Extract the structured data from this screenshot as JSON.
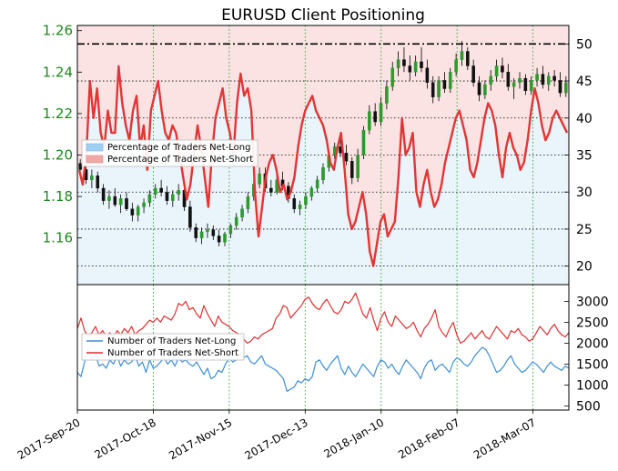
{
  "chart_data": {
    "title": "EURUSD Client Positioning",
    "top": {
      "price_axis": {
        "ticks": [
          "1.16",
          "1.18",
          "1.20",
          "1.22",
          "1.24",
          "1.26"
        ],
        "ylim": [
          1.1375,
          1.2625
        ]
      },
      "percent_axis": {
        "ticks": [
          "20",
          "25",
          "30",
          "35",
          "40",
          "45",
          "50"
        ],
        "ylim": [
          17.5,
          52.5
        ]
      },
      "reference_line": 50,
      "legend": [
        {
          "label": "Percentage of Traders Net-Long",
          "color": "#9fcff2"
        },
        {
          "label": "Percentage of Traders Net-Short",
          "color": "#f2a7a7"
        }
      ],
      "net_short_pct": [
        33,
        31,
        35,
        45,
        40,
        44,
        38,
        36,
        41,
        38,
        38,
        47,
        42,
        39,
        37,
        41,
        43,
        36,
        39,
        33,
        41,
        43,
        45,
        41,
        38,
        37,
        39,
        38,
        35,
        32,
        29,
        31,
        35,
        39,
        36,
        32,
        28,
        35,
        40,
        42,
        44,
        40,
        38,
        35,
        42,
        46,
        43,
        44,
        41,
        30,
        24,
        28,
        32,
        34,
        35,
        33,
        30,
        31,
        29,
        30,
        32,
        36,
        39,
        41,
        42,
        43,
        41,
        40,
        39,
        37,
        34,
        33,
        36,
        38,
        33,
        27,
        25,
        26,
        28,
        30,
        27,
        22,
        20,
        23,
        26,
        27,
        24,
        25,
        26,
        32,
        40,
        35,
        36,
        38,
        30,
        28,
        31,
        33,
        30,
        28,
        29,
        31,
        34,
        36,
        38,
        40,
        41,
        39,
        37,
        33,
        32,
        34,
        37,
        40,
        42,
        41,
        39,
        35,
        32,
        36,
        38,
        36,
        35,
        33,
        34,
        37,
        41,
        44,
        42,
        39,
        37,
        38,
        40,
        41,
        40,
        39,
        38
      ],
      "ohlc": [
        {
          "o": 1.196,
          "h": 1.198,
          "l": 1.191,
          "c": 1.193
        },
        {
          "o": 1.193,
          "h": 1.197,
          "l": 1.186,
          "c": 1.188
        },
        {
          "o": 1.188,
          "h": 1.193,
          "l": 1.184,
          "c": 1.19
        },
        {
          "o": 1.19,
          "h": 1.192,
          "l": 1.182,
          "c": 1.184
        },
        {
          "o": 1.184,
          "h": 1.186,
          "l": 1.176,
          "c": 1.178
        },
        {
          "o": 1.178,
          "h": 1.183,
          "l": 1.174,
          "c": 1.18
        },
        {
          "o": 1.18,
          "h": 1.184,
          "l": 1.175,
          "c": 1.176
        },
        {
          "o": 1.176,
          "h": 1.181,
          "l": 1.172,
          "c": 1.179
        },
        {
          "o": 1.179,
          "h": 1.182,
          "l": 1.173,
          "c": 1.174
        },
        {
          "o": 1.174,
          "h": 1.177,
          "l": 1.168,
          "c": 1.171
        },
        {
          "o": 1.171,
          "h": 1.176,
          "l": 1.168,
          "c": 1.175
        },
        {
          "o": 1.175,
          "h": 1.179,
          "l": 1.172,
          "c": 1.177
        },
        {
          "o": 1.177,
          "h": 1.183,
          "l": 1.175,
          "c": 1.181
        },
        {
          "o": 1.181,
          "h": 1.186,
          "l": 1.179,
          "c": 1.184
        },
        {
          "o": 1.184,
          "h": 1.188,
          "l": 1.18,
          "c": 1.182
        },
        {
          "o": 1.182,
          "h": 1.185,
          "l": 1.176,
          "c": 1.178
        },
        {
          "o": 1.178,
          "h": 1.183,
          "l": 1.175,
          "c": 1.181
        },
        {
          "o": 1.181,
          "h": 1.186,
          "l": 1.178,
          "c": 1.183
        },
        {
          "o": 1.183,
          "h": 1.184,
          "l": 1.173,
          "c": 1.175
        },
        {
          "o": 1.175,
          "h": 1.178,
          "l": 1.163,
          "c": 1.165
        },
        {
          "o": 1.165,
          "h": 1.167,
          "l": 1.158,
          "c": 1.16
        },
        {
          "o": 1.16,
          "h": 1.165,
          "l": 1.157,
          "c": 1.163
        },
        {
          "o": 1.163,
          "h": 1.167,
          "l": 1.16,
          "c": 1.164
        },
        {
          "o": 1.164,
          "h": 1.166,
          "l": 1.159,
          "c": 1.161
        },
        {
          "o": 1.161,
          "h": 1.164,
          "l": 1.156,
          "c": 1.158
        },
        {
          "o": 1.158,
          "h": 1.163,
          "l": 1.156,
          "c": 1.162
        },
        {
          "o": 1.162,
          "h": 1.167,
          "l": 1.16,
          "c": 1.166
        },
        {
          "o": 1.166,
          "h": 1.172,
          "l": 1.164,
          "c": 1.17
        },
        {
          "o": 1.17,
          "h": 1.176,
          "l": 1.168,
          "c": 1.174
        },
        {
          "o": 1.174,
          "h": 1.182,
          "l": 1.172,
          "c": 1.18
        },
        {
          "o": 1.18,
          "h": 1.188,
          "l": 1.178,
          "c": 1.186
        },
        {
          "o": 1.186,
          "h": 1.194,
          "l": 1.184,
          "c": 1.191
        },
        {
          "o": 1.191,
          "h": 1.194,
          "l": 1.182,
          "c": 1.184
        },
        {
          "o": 1.184,
          "h": 1.188,
          "l": 1.18,
          "c": 1.182
        },
        {
          "o": 1.182,
          "h": 1.19,
          "l": 1.181,
          "c": 1.188
        },
        {
          "o": 1.188,
          "h": 1.192,
          "l": 1.183,
          "c": 1.185
        },
        {
          "o": 1.185,
          "h": 1.187,
          "l": 1.177,
          "c": 1.179
        },
        {
          "o": 1.179,
          "h": 1.181,
          "l": 1.172,
          "c": 1.174
        },
        {
          "o": 1.174,
          "h": 1.178,
          "l": 1.171,
          "c": 1.176
        },
        {
          "o": 1.176,
          "h": 1.182,
          "l": 1.174,
          "c": 1.18
        },
        {
          "o": 1.18,
          "h": 1.185,
          "l": 1.178,
          "c": 1.184
        },
        {
          "o": 1.184,
          "h": 1.19,
          "l": 1.182,
          "c": 1.188
        },
        {
          "o": 1.188,
          "h": 1.196,
          "l": 1.186,
          "c": 1.194
        },
        {
          "o": 1.194,
          "h": 1.202,
          "l": 1.192,
          "c": 1.2
        },
        {
          "o": 1.2,
          "h": 1.206,
          "l": 1.198,
          "c": 1.204
        },
        {
          "o": 1.204,
          "h": 1.208,
          "l": 1.199,
          "c": 1.201
        },
        {
          "o": 1.201,
          "h": 1.205,
          "l": 1.195,
          "c": 1.197
        },
        {
          "o": 1.197,
          "h": 1.199,
          "l": 1.186,
          "c": 1.189
        },
        {
          "o": 1.189,
          "h": 1.203,
          "l": 1.187,
          "c": 1.2
        },
        {
          "o": 1.2,
          "h": 1.214,
          "l": 1.198,
          "c": 1.212
        },
        {
          "o": 1.212,
          "h": 1.224,
          "l": 1.21,
          "c": 1.221
        },
        {
          "o": 1.221,
          "h": 1.225,
          "l": 1.214,
          "c": 1.216
        },
        {
          "o": 1.216,
          "h": 1.228,
          "l": 1.214,
          "c": 1.225
        },
        {
          "o": 1.225,
          "h": 1.236,
          "l": 1.222,
          "c": 1.233
        },
        {
          "o": 1.233,
          "h": 1.245,
          "l": 1.231,
          "c": 1.242
        },
        {
          "o": 1.242,
          "h": 1.25,
          "l": 1.238,
          "c": 1.246
        },
        {
          "o": 1.246,
          "h": 1.252,
          "l": 1.24,
          "c": 1.243
        },
        {
          "o": 1.243,
          "h": 1.248,
          "l": 1.236,
          "c": 1.24
        },
        {
          "o": 1.24,
          "h": 1.248,
          "l": 1.238,
          "c": 1.245
        },
        {
          "o": 1.245,
          "h": 1.252,
          "l": 1.24,
          "c": 1.242
        },
        {
          "o": 1.242,
          "h": 1.246,
          "l": 1.232,
          "c": 1.235
        },
        {
          "o": 1.235,
          "h": 1.238,
          "l": 1.225,
          "c": 1.228
        },
        {
          "o": 1.228,
          "h": 1.238,
          "l": 1.226,
          "c": 1.236
        },
        {
          "o": 1.236,
          "h": 1.24,
          "l": 1.23,
          "c": 1.232
        },
        {
          "o": 1.232,
          "h": 1.242,
          "l": 1.23,
          "c": 1.24
        },
        {
          "o": 1.24,
          "h": 1.249,
          "l": 1.238,
          "c": 1.246
        },
        {
          "o": 1.246,
          "h": 1.255,
          "l": 1.243,
          "c": 1.25
        },
        {
          "o": 1.25,
          "h": 1.252,
          "l": 1.241,
          "c": 1.243
        },
        {
          "o": 1.243,
          "h": 1.246,
          "l": 1.233,
          "c": 1.235
        },
        {
          "o": 1.235,
          "h": 1.238,
          "l": 1.226,
          "c": 1.229
        },
        {
          "o": 1.229,
          "h": 1.236,
          "l": 1.227,
          "c": 1.234
        },
        {
          "o": 1.234,
          "h": 1.241,
          "l": 1.231,
          "c": 1.238
        },
        {
          "o": 1.238,
          "h": 1.246,
          "l": 1.236,
          "c": 1.243
        },
        {
          "o": 1.243,
          "h": 1.247,
          "l": 1.237,
          "c": 1.24
        },
        {
          "o": 1.24,
          "h": 1.244,
          "l": 1.231,
          "c": 1.233
        },
        {
          "o": 1.233,
          "h": 1.237,
          "l": 1.227,
          "c": 1.235
        },
        {
          "o": 1.235,
          "h": 1.24,
          "l": 1.232,
          "c": 1.237
        },
        {
          "o": 1.237,
          "h": 1.239,
          "l": 1.229,
          "c": 1.231
        },
        {
          "o": 1.231,
          "h": 1.238,
          "l": 1.229,
          "c": 1.236
        },
        {
          "o": 1.236,
          "h": 1.242,
          "l": 1.233,
          "c": 1.239
        },
        {
          "o": 1.239,
          "h": 1.243,
          "l": 1.232,
          "c": 1.234
        },
        {
          "o": 1.234,
          "h": 1.24,
          "l": 1.231,
          "c": 1.238
        },
        {
          "o": 1.238,
          "h": 1.241,
          "l": 1.233,
          "c": 1.236
        },
        {
          "o": 1.236,
          "h": 1.24,
          "l": 1.228,
          "c": 1.23
        },
        {
          "o": 1.23,
          "h": 1.238,
          "l": 1.228,
          "c": 1.235
        }
      ]
    },
    "bottom": {
      "count_axis": {
        "ticks": [
          "500",
          "1000",
          "1500",
          "2000",
          "2500",
          "3000"
        ],
        "ylim": [
          400,
          3400
        ]
      },
      "legend": [
        {
          "label": "Number of Traders Net-Long",
          "color": "#3d8fd6"
        },
        {
          "label": "Number of Traders Net-Short",
          "color": "#e03131"
        }
      ],
      "net_short": [
        2350,
        2600,
        2300,
        2150,
        2250,
        2400,
        2200,
        2300,
        2150,
        2250,
        2100,
        2300,
        2200,
        2350,
        2250,
        2400,
        2200,
        2300,
        2350,
        2450,
        2550,
        2500,
        2600,
        2500,
        2650,
        2600,
        2550,
        2700,
        2950,
        2900,
        3000,
        2800,
        2850,
        2700,
        2600,
        2900,
        2700,
        2550,
        2400,
        2650,
        2500,
        2450,
        2400,
        2300,
        2250,
        2200,
        2100,
        2000,
        2050,
        2150,
        2100,
        2200,
        2250,
        2300,
        2350,
        2600,
        2700,
        2900,
        2850,
        2600,
        2700,
        2800,
        2900,
        3050,
        3100,
        2950,
        2850,
        2800,
        2950,
        3050,
        2900,
        2750,
        2700,
        2800,
        3000,
        2950,
        3050,
        3200,
        2950,
        2700,
        2600,
        2850,
        2550,
        2300,
        2600,
        2750,
        2500,
        2400,
        2650,
        2550,
        2450,
        2350,
        2400,
        2500,
        2300,
        2150,
        2350,
        2450,
        2600,
        2800,
        2400,
        2250,
        2150,
        2350,
        2500,
        2200,
        2000,
        2050,
        2150,
        2250,
        2100,
        2200,
        2300,
        2150,
        2100,
        2250,
        2400,
        2300,
        2200,
        2100,
        2300,
        2250,
        2350,
        2200,
        2150,
        2050,
        2100,
        2250,
        2400,
        2300,
        2200,
        2350,
        2450,
        2300,
        2200,
        2150,
        2250
      ],
      "net_long": [
        1300,
        1200,
        1550,
        1850,
        1600,
        1750,
        1450,
        1500,
        1400,
        1600,
        1500,
        1700,
        1450,
        1600,
        1500,
        1550,
        1700,
        1450,
        1550,
        1300,
        1600,
        1400,
        1450,
        1550,
        1650,
        1500,
        1600,
        1450,
        1650,
        1550,
        1600,
        1500,
        1450,
        1550,
        1400,
        1250,
        1400,
        1150,
        1200,
        1350,
        1300,
        1500,
        1650,
        1550,
        1600,
        1700,
        1650,
        1700,
        1550,
        1500,
        1600,
        1700,
        1500,
        1450,
        1400,
        1350,
        1250,
        1150,
        850,
        900,
        950,
        1100,
        1050,
        1150,
        1100,
        1200,
        1550,
        1600,
        1450,
        1350,
        1500,
        1600,
        1700,
        1400,
        1250,
        1450,
        1300,
        1200,
        1350,
        1500,
        1400,
        1300,
        1200,
        1450,
        1600,
        1550,
        1400,
        1500,
        1350,
        1250,
        1450,
        1600,
        1500,
        1400,
        1300,
        1150,
        1400,
        1550,
        1600,
        1350,
        1450,
        1500,
        1400,
        1300,
        1550,
        1650,
        1600,
        1500,
        1450,
        1550,
        1700,
        1800,
        1900,
        1850,
        1700,
        1500,
        1300,
        1350,
        1450,
        1600,
        1700,
        1500,
        1400,
        1300,
        1350,
        1450,
        1550,
        1500,
        1400,
        1300,
        1450,
        1550,
        1450,
        1400,
        1350,
        1450,
        1400
      ]
    },
    "x_dates": [
      "2017-Sep-20",
      "2017-Oct-18",
      "2017-Nov-15",
      "2017-Dec-13",
      "2018-Jan-10",
      "2018-Feb-07",
      "2018-Mar-07"
    ]
  }
}
